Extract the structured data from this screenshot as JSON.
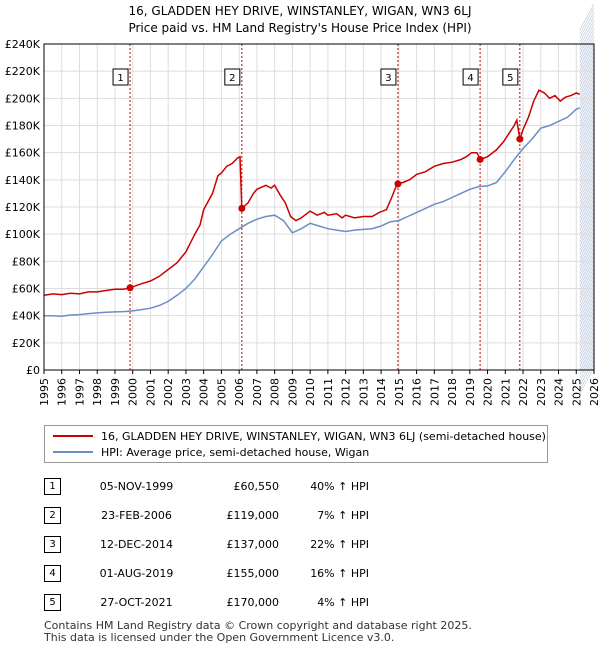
{
  "header": {
    "title": "16, GLADDEN HEY DRIVE, WINSTANLEY, WIGAN, WN3 6LJ",
    "subtitle": "Price paid vs. HM Land Registry's House Price Index (HPI)"
  },
  "colors": {
    "price": "#cc0000",
    "hpi": "#6b8fc4",
    "grid": "#dddddd",
    "shade": "#f2f5fa",
    "marker_line": "#cc0000"
  },
  "chart_data": {
    "type": "line",
    "xlim": [
      1995,
      2026
    ],
    "ylim": [
      0,
      240000
    ],
    "x_ticks": [
      "1995",
      "1996",
      "1997",
      "1998",
      "1999",
      "2000",
      "2001",
      "2002",
      "2003",
      "2004",
      "2005",
      "2006",
      "2007",
      "2008",
      "2009",
      "2010",
      "2011",
      "2012",
      "2013",
      "2014",
      "2015",
      "2016",
      "2017",
      "2018",
      "2019",
      "2020",
      "2021",
      "2022",
      "2023",
      "2024",
      "2025",
      "2026"
    ],
    "y_ticks": [
      {
        "value": 0,
        "label": "£0"
      },
      {
        "value": 20000,
        "label": "£20K"
      },
      {
        "value": 40000,
        "label": "£40K"
      },
      {
        "value": 60000,
        "label": "£60K"
      },
      {
        "value": 80000,
        "label": "£80K"
      },
      {
        "value": 100000,
        "label": "£100K"
      },
      {
        "value": 120000,
        "label": "£120K"
      },
      {
        "value": 140000,
        "label": "£140K"
      },
      {
        "value": 160000,
        "label": "£160K"
      },
      {
        "value": 180000,
        "label": "£180K"
      },
      {
        "value": 200000,
        "label": "£200K"
      },
      {
        "value": 220000,
        "label": "£220K"
      },
      {
        "value": 240000,
        "label": "£240K"
      }
    ],
    "future_shade_from": 2025.2,
    "series": [
      {
        "name": "16, GLADDEN HEY DRIVE, WINSTANLEY, WIGAN, WN3 6LJ (semi-detached house)",
        "color": "#cc0000",
        "points": [
          [
            1995.0,
            55000
          ],
          [
            1995.5,
            56000
          ],
          [
            1996.0,
            55500
          ],
          [
            1996.5,
            56500
          ],
          [
            1997.0,
            56000
          ],
          [
            1997.5,
            57500
          ],
          [
            1998.0,
            57500
          ],
          [
            1998.5,
            58500
          ],
          [
            1999.0,
            59500
          ],
          [
            1999.5,
            59500
          ],
          [
            1999.85,
            60550
          ],
          [
            2000.5,
            63500
          ],
          [
            2001.0,
            65500
          ],
          [
            2001.5,
            69000
          ],
          [
            2002.0,
            74000
          ],
          [
            2002.5,
            79000
          ],
          [
            2003.0,
            87000
          ],
          [
            2003.5,
            100000
          ],
          [
            2003.8,
            107000
          ],
          [
            2004.0,
            118000
          ],
          [
            2004.5,
            130000
          ],
          [
            2004.8,
            143000
          ],
          [
            2005.0,
            145000
          ],
          [
            2005.3,
            150000
          ],
          [
            2005.6,
            152000
          ],
          [
            2005.9,
            156000
          ],
          [
            2006.05,
            157000
          ],
          [
            2006.15,
            119000
          ],
          [
            2006.5,
            123000
          ],
          [
            2006.8,
            130000
          ],
          [
            2007.0,
            133000
          ],
          [
            2007.5,
            136000
          ],
          [
            2007.8,
            134000
          ],
          [
            2008.0,
            136000
          ],
          [
            2008.3,
            129000
          ],
          [
            2008.6,
            123000
          ],
          [
            2008.9,
            113000
          ],
          [
            2009.2,
            110000
          ],
          [
            2009.5,
            112000
          ],
          [
            2009.8,
            115000
          ],
          [
            2010.0,
            117000
          ],
          [
            2010.4,
            114000
          ],
          [
            2010.8,
            116000
          ],
          [
            2011.0,
            114000
          ],
          [
            2011.5,
            115000
          ],
          [
            2011.8,
            112000
          ],
          [
            2012.0,
            114000
          ],
          [
            2012.5,
            112000
          ],
          [
            2013.0,
            113000
          ],
          [
            2013.5,
            113000
          ],
          [
            2013.9,
            116000
          ],
          [
            2014.3,
            118000
          ],
          [
            2014.6,
            127000
          ],
          [
            2014.9,
            137000
          ],
          [
            2015.2,
            138000
          ],
          [
            2015.6,
            140000
          ],
          [
            2016.0,
            144000
          ],
          [
            2016.5,
            146000
          ],
          [
            2017.0,
            150000
          ],
          [
            2017.5,
            152000
          ],
          [
            2018.0,
            153000
          ],
          [
            2018.5,
            155000
          ],
          [
            2018.8,
            157000
          ],
          [
            2019.1,
            160000
          ],
          [
            2019.4,
            160000
          ],
          [
            2019.6,
            155000
          ],
          [
            2020.0,
            157000
          ],
          [
            2020.5,
            162000
          ],
          [
            2020.9,
            168000
          ],
          [
            2021.2,
            174000
          ],
          [
            2021.5,
            180000
          ],
          [
            2021.65,
            184000
          ],
          [
            2021.82,
            170000
          ],
          [
            2022.0,
            177000
          ],
          [
            2022.3,
            186000
          ],
          [
            2022.6,
            198000
          ],
          [
            2022.9,
            206000
          ],
          [
            2023.2,
            204000
          ],
          [
            2023.5,
            200000
          ],
          [
            2023.8,
            202000
          ],
          [
            2024.1,
            198000
          ],
          [
            2024.4,
            201000
          ],
          [
            2024.7,
            202000
          ],
          [
            2025.0,
            204000
          ],
          [
            2025.2,
            203000
          ]
        ]
      },
      {
        "name": "HPI: Average price, semi-detached house, Wigan",
        "color": "#6b8fc4",
        "points": [
          [
            1995.0,
            40000
          ],
          [
            1995.5,
            40000
          ],
          [
            1996.0,
            39500
          ],
          [
            1996.5,
            40500
          ],
          [
            1997.0,
            40800
          ],
          [
            1997.5,
            41500
          ],
          [
            1998.0,
            42000
          ],
          [
            1998.5,
            42500
          ],
          [
            1999.0,
            42800
          ],
          [
            1999.5,
            43000
          ],
          [
            2000.0,
            43500
          ],
          [
            2000.5,
            44500
          ],
          [
            2001.0,
            45500
          ],
          [
            2001.5,
            47500
          ],
          [
            2002.0,
            50500
          ],
          [
            2002.5,
            55000
          ],
          [
            2003.0,
            60000
          ],
          [
            2003.5,
            67000
          ],
          [
            2004.0,
            76000
          ],
          [
            2004.5,
            85000
          ],
          [
            2005.0,
            95000
          ],
          [
            2005.5,
            100000
          ],
          [
            2006.0,
            104000
          ],
          [
            2006.5,
            108000
          ],
          [
            2007.0,
            111000
          ],
          [
            2007.5,
            113000
          ],
          [
            2008.0,
            114000
          ],
          [
            2008.5,
            110000
          ],
          [
            2009.0,
            101000
          ],
          [
            2009.5,
            104000
          ],
          [
            2010.0,
            108000
          ],
          [
            2010.5,
            106000
          ],
          [
            2011.0,
            104000
          ],
          [
            2011.5,
            103000
          ],
          [
            2012.0,
            102000
          ],
          [
            2012.5,
            103000
          ],
          [
            2013.0,
            103500
          ],
          [
            2013.5,
            104000
          ],
          [
            2014.0,
            106000
          ],
          [
            2014.5,
            109000
          ],
          [
            2015.0,
            110000
          ],
          [
            2015.5,
            113000
          ],
          [
            2016.0,
            116000
          ],
          [
            2016.5,
            119000
          ],
          [
            2017.0,
            122000
          ],
          [
            2017.5,
            124000
          ],
          [
            2018.0,
            127000
          ],
          [
            2018.5,
            130000
          ],
          [
            2019.0,
            133000
          ],
          [
            2019.5,
            135000
          ],
          [
            2020.0,
            135500
          ],
          [
            2020.5,
            138000
          ],
          [
            2021.0,
            146000
          ],
          [
            2021.5,
            155000
          ],
          [
            2022.0,
            163000
          ],
          [
            2022.5,
            170000
          ],
          [
            2023.0,
            178000
          ],
          [
            2023.5,
            180000
          ],
          [
            2024.0,
            183000
          ],
          [
            2024.5,
            186000
          ],
          [
            2025.0,
            192000
          ],
          [
            2025.2,
            193000
          ]
        ]
      }
    ],
    "sales": [
      {
        "n": "1",
        "x": 1999.85,
        "y": 60550
      },
      {
        "n": "2",
        "x": 2006.15,
        "y": 119000
      },
      {
        "n": "3",
        "x": 2014.95,
        "y": 137000
      },
      {
        "n": "4",
        "x": 2019.58,
        "y": 155000
      },
      {
        "n": "5",
        "x": 2021.82,
        "y": 170000
      }
    ]
  },
  "legend": {
    "price_label": "16, GLADDEN HEY DRIVE, WINSTANLEY, WIGAN, WN3 6LJ (semi-detached house)",
    "hpi_label": "HPI: Average price, semi-detached house, Wigan"
  },
  "sales_table": [
    {
      "n": "1",
      "date": "05-NOV-1999",
      "price": "£60,550",
      "pct": "40% ↑ HPI"
    },
    {
      "n": "2",
      "date": "23-FEB-2006",
      "price": "£119,000",
      "pct": "7% ↑ HPI"
    },
    {
      "n": "3",
      "date": "12-DEC-2014",
      "price": "£137,000",
      "pct": "22% ↑ HPI"
    },
    {
      "n": "4",
      "date": "01-AUG-2019",
      "price": "£155,000",
      "pct": "16% ↑ HPI"
    },
    {
      "n": "5",
      "date": "27-OCT-2021",
      "price": "£170,000",
      "pct": "4% ↑ HPI"
    }
  ],
  "footer": {
    "line1": "Contains HM Land Registry data © Crown copyright and database right 2025.",
    "line2": "This data is licensed under the Open Government Licence v3.0."
  }
}
